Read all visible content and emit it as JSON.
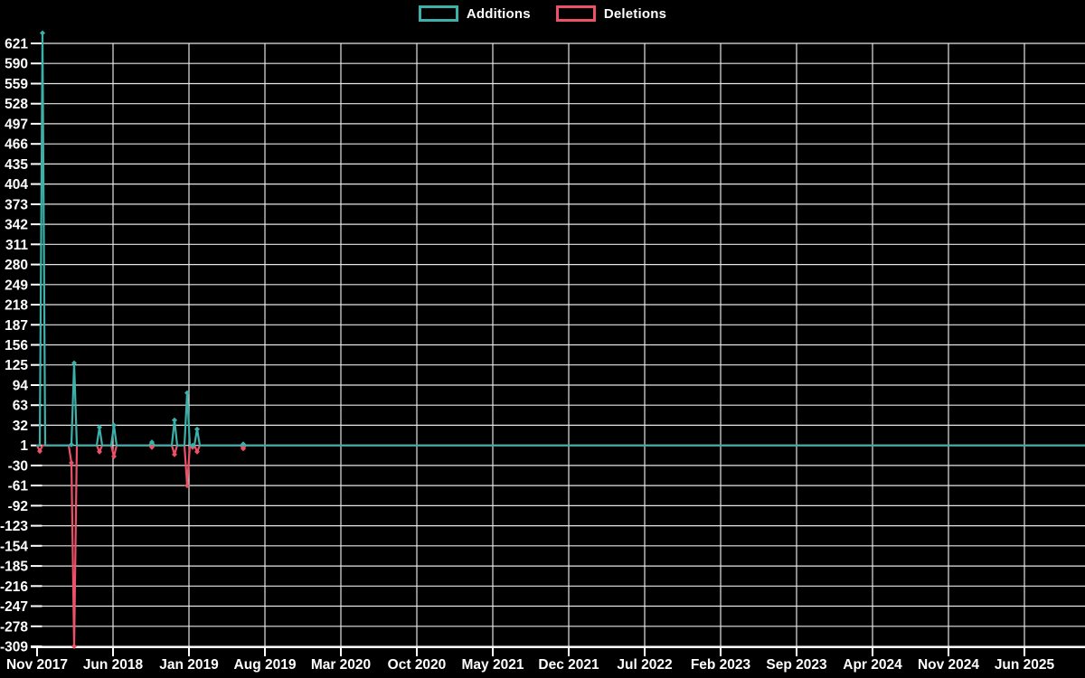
{
  "legend": {
    "items": [
      {
        "label": "Additions",
        "color": "#3bb1aa"
      },
      {
        "label": "Deletions",
        "color": "#ec5168"
      }
    ]
  },
  "chart_data": {
    "type": "line",
    "title": "",
    "background_color": "#000000",
    "grid": true,
    "grid_color": "#e6e6e6",
    "axis_color": "#ffffff",
    "legend_position": "top-center",
    "legend": [
      "Additions",
      "Deletions"
    ],
    "x_tick_labels": [
      "Nov 2017",
      "Jun 2018",
      "Jan 2019",
      "Aug 2019",
      "Mar 2020",
      "Oct 2020",
      "May 2021",
      "Dec 2021",
      "Jul 2022",
      "Feb 2023",
      "Sep 2023",
      "Apr 2024",
      "Nov 2024",
      "Jun 2025"
    ],
    "x_months_per_tick": 7,
    "y_ticks": [
      621,
      590,
      559,
      528,
      497,
      466,
      435,
      404,
      373,
      342,
      311,
      280,
      249,
      218,
      187,
      156,
      125,
      94,
      63,
      32,
      1,
      -30,
      -61,
      -92,
      -123,
      -154,
      -185,
      -216,
      -247,
      -278,
      -309
    ],
    "ylim": [
      -309,
      621
    ],
    "baseline_value": 1,
    "series": [
      {
        "name": "Additions",
        "color": "#3bb1aa",
        "points": [
          {
            "approx_date": "2017-11",
            "months_from_start": 0.5,
            "value": 637
          },
          {
            "approx_date": "2018-02",
            "months_from_start": 3.17,
            "value": 2
          },
          {
            "approx_date": "2018-02",
            "months_from_start": 3.42,
            "value": 128
          },
          {
            "approx_date": "2018-04",
            "months_from_start": 5.75,
            "value": 29
          },
          {
            "approx_date": "2018-06",
            "months_from_start": 7.08,
            "value": 32
          },
          {
            "approx_date": "2018-09",
            "months_from_start": 10.58,
            "value": 6
          },
          {
            "approx_date": "2018-12",
            "months_from_start": 12.67,
            "value": 40
          },
          {
            "approx_date": "2019-01",
            "months_from_start": 13.83,
            "value": 82
          },
          {
            "approx_date": "2019-01",
            "months_from_start": 14.33,
            "value": 1
          },
          {
            "approx_date": "2019-02",
            "months_from_start": 14.75,
            "value": 26
          },
          {
            "approx_date": "2019-06",
            "months_from_start": 19.0,
            "value": 3
          }
        ]
      },
      {
        "name": "Deletions",
        "color": "#ec5168",
        "points": [
          {
            "approx_date": "2017-11",
            "months_from_start": 0.25,
            "value": -8
          },
          {
            "approx_date": "2018-02",
            "months_from_start": 3.17,
            "value": -26
          },
          {
            "approx_date": "2018-02",
            "months_from_start": 3.42,
            "value": -309
          },
          {
            "approx_date": "2018-04",
            "months_from_start": 5.75,
            "value": -9
          },
          {
            "approx_date": "2018-06",
            "months_from_start": 7.08,
            "value": -16
          },
          {
            "approx_date": "2018-09",
            "months_from_start": 10.58,
            "value": -2
          },
          {
            "approx_date": "2018-12",
            "months_from_start": 12.67,
            "value": -13
          },
          {
            "approx_date": "2019-01",
            "months_from_start": 13.83,
            "value": -61
          },
          {
            "approx_date": "2019-01",
            "months_from_start": 14.33,
            "value": -2
          },
          {
            "approx_date": "2019-02",
            "months_from_start": 14.75,
            "value": -9
          },
          {
            "approx_date": "2019-06",
            "months_from_start": 19.0,
            "value": -4
          }
        ]
      }
    ]
  }
}
